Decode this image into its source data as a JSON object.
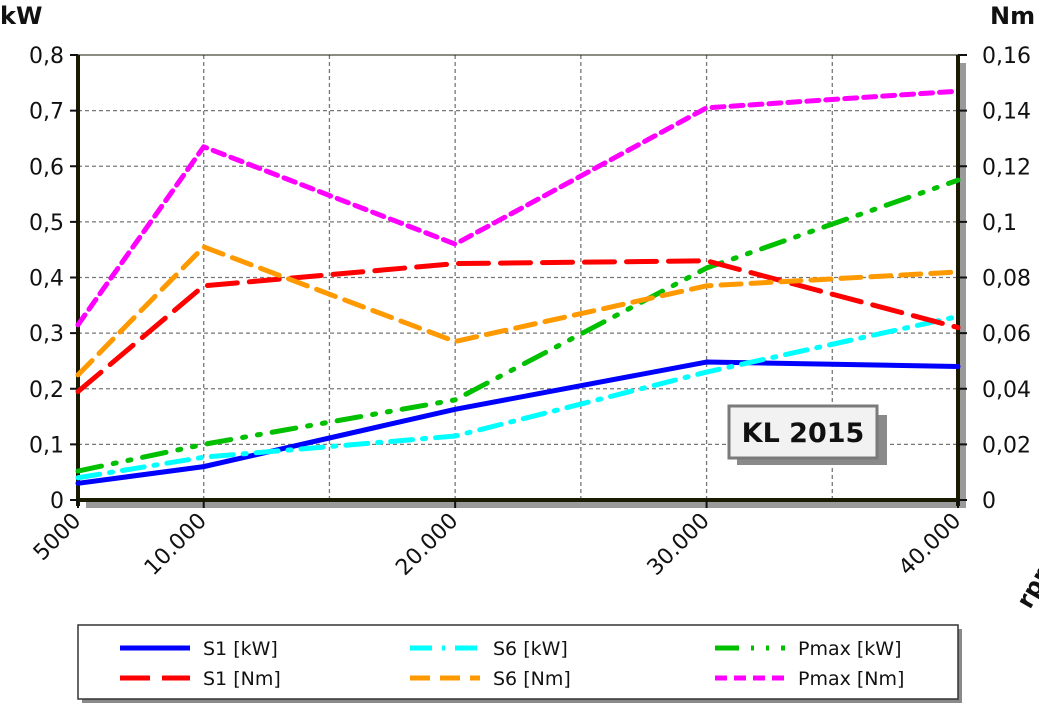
{
  "chart_data": {
    "type": "line",
    "title": "",
    "annotation": "KL 2015",
    "xlabel": "rpm",
    "ylabel_left": "kW",
    "ylabel_right": "Nm",
    "x": [
      5000,
      10000,
      20000,
      30000,
      40000
    ],
    "x_tick_labels": [
      "5000",
      "10.000",
      "20.000",
      "30.000",
      "40.000"
    ],
    "xlim": [
      5000,
      40000
    ],
    "ylim_left": [
      0,
      0.8
    ],
    "ylim_right": [
      0,
      0.16
    ],
    "y_left_tick_labels": [
      "0",
      "0,1",
      "0,2",
      "0,3",
      "0,4",
      "0,5",
      "0,6",
      "0,7",
      "0,8"
    ],
    "y_right_tick_labels": [
      "0",
      "0,02",
      "0,04",
      "0,06",
      "0,08",
      "0,1",
      "0,12",
      "0,14",
      "0,16"
    ],
    "grid": true,
    "legend_position": "bottom",
    "series": [
      {
        "name": "S1 [kW]",
        "axis": "left",
        "color": "#0000ff",
        "dash": "solid",
        "values": [
          0.03,
          0.06,
          0.163,
          0.248,
          0.24
        ]
      },
      {
        "name": "S6 [kW]",
        "axis": "left",
        "color": "#00ffff",
        "dash": "dashdot",
        "values": [
          0.04,
          0.077,
          0.115,
          0.23,
          0.33
        ]
      },
      {
        "name": "Pmax [kW]",
        "axis": "left",
        "color": "#00c000",
        "dash": "dashdotdot",
        "values": [
          0.052,
          0.1,
          0.18,
          0.417,
          0.575
        ]
      },
      {
        "name": "S1 [Nm]",
        "axis": "right",
        "color": "#ff0000",
        "dash": "longdash",
        "values": [
          0.039,
          0.077,
          0.085,
          0.086,
          0.062
        ]
      },
      {
        "name": "S6 [Nm]",
        "axis": "right",
        "color": "#ff9900",
        "dash": "dash",
        "values": [
          0.045,
          0.091,
          0.057,
          0.077,
          0.082
        ]
      },
      {
        "name": "Pmax [Nm]",
        "axis": "right",
        "color": "#ff00ff",
        "dash": "shortdash",
        "values": [
          0.063,
          0.127,
          0.092,
          0.141,
          0.147
        ]
      }
    ]
  }
}
